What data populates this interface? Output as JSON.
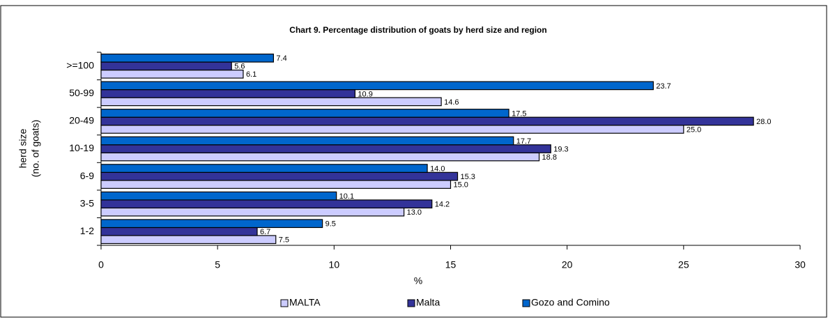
{
  "chart_data": {
    "type": "barh",
    "title": "Chart 9.  Percentage distribution of goats by herd size and region",
    "xlabel": "%",
    "ylabel": [
      "herd size",
      "(no. of goats)"
    ],
    "categories": [
      ">=100",
      "50-99",
      "20-49",
      "10-19",
      "6-9",
      "3-5",
      "1-2"
    ],
    "series": [
      {
        "name": "MALTA",
        "color": "#ccccff",
        "values": [
          6.1,
          14.6,
          25.0,
          18.8,
          15.0,
          13.0,
          7.5
        ],
        "value_labels": [
          "6.1",
          "14.6",
          "25.0",
          "18.8",
          "15.0",
          "13.0",
          "7.5"
        ]
      },
      {
        "name": "Malta",
        "color": "#333399",
        "values": [
          5.6,
          10.9,
          28.0,
          19.3,
          15.3,
          14.2,
          6.7
        ],
        "value_labels": [
          "5.6",
          "10.9",
          "28.0",
          "19.3",
          "15.3",
          "14.2",
          "6.7"
        ]
      },
      {
        "name": "Gozo and Comino",
        "color": "#0066cc",
        "values": [
          7.4,
          23.7,
          17.5,
          17.7,
          14.0,
          10.1,
          9.5
        ],
        "value_labels": [
          "7.4",
          "23.7",
          "17.5",
          "17.7",
          "14.0",
          "10.1",
          "9.5"
        ]
      }
    ],
    "xlim": [
      0,
      30
    ],
    "xticks": [
      0,
      5,
      10,
      15,
      20,
      25,
      30
    ],
    "grid": false,
    "legend": "bottom"
  }
}
